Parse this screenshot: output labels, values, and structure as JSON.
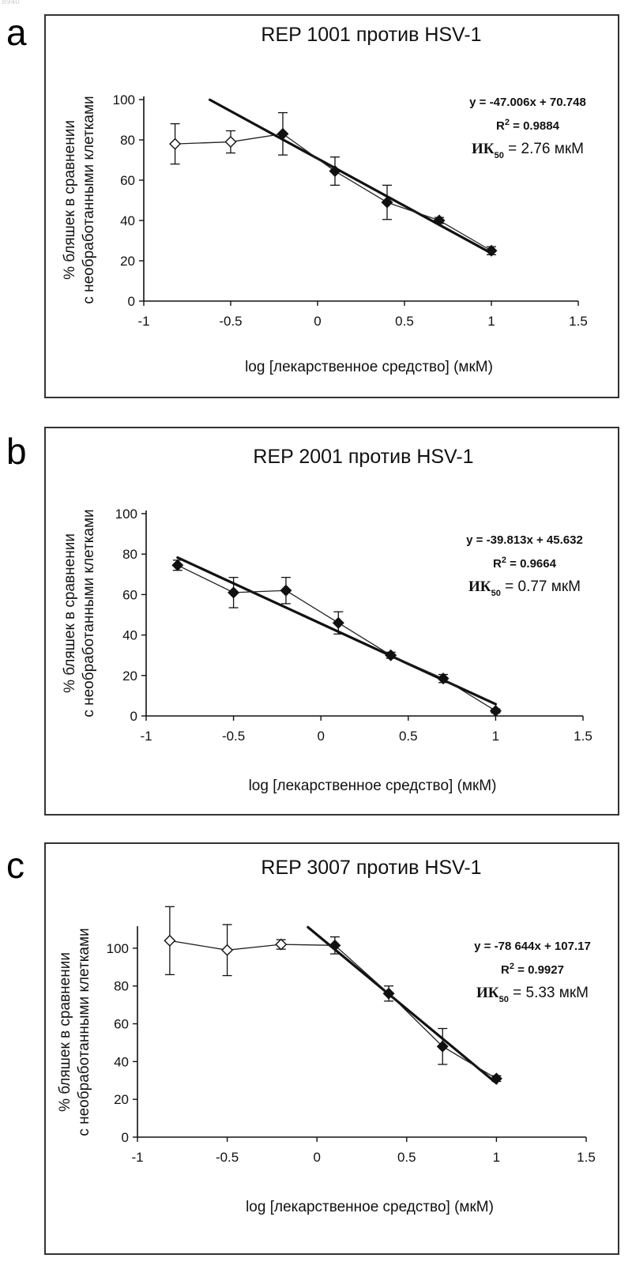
{
  "watermark": "8940",
  "chart_data": [
    {
      "type": "line",
      "panel": "a",
      "title": "REP 1001 против HSV-1",
      "ylabel": "% бляшек в сравнении с необработанными клетками",
      "xlabel": "log [лекарственное средство]  (мкМ)",
      "xlim": [
        -1,
        1.5
      ],
      "ylim": [
        0,
        100
      ],
      "xticks": [
        -1,
        -0.5,
        0,
        0.5,
        1,
        1.5
      ],
      "yticks": [
        0,
        20,
        40,
        60,
        80,
        100
      ],
      "xtick_labels": [
        "-1",
        "-0.5",
        "0",
        "0.5",
        "1",
        "1.5"
      ],
      "ytick_labels": [
        "0",
        "20",
        "40",
        "60",
        "80",
        "100"
      ],
      "series": [
        {
          "points": [
            {
              "x": -0.82,
              "y": 78,
              "err": 10,
              "marker": "open-diamond"
            },
            {
              "x": -0.5,
              "y": 79,
              "err": 5.5,
              "marker": "open-diamond"
            },
            {
              "x": -0.2,
              "y": 83,
              "err": 10.5,
              "marker": "filled-diamond"
            },
            {
              "x": 0.1,
              "y": 64.5,
              "err": 7,
              "marker": "filled-diamond"
            },
            {
              "x": 0.4,
              "y": 49,
              "err": 8.5,
              "marker": "filled-diamond"
            },
            {
              "x": 0.7,
              "y": 40,
              "err": 1.5,
              "marker": "filled-diamond"
            },
            {
              "x": 1.0,
              "y": 25,
              "err": 2,
              "marker": "filled-diamond"
            }
          ]
        }
      ],
      "trendline": {
        "slope": -47.006,
        "intercept": 70.748,
        "x_start": -0.62,
        "x_end": 1.0
      },
      "annotation": {
        "equation": "y = -47.006x + 70.748",
        "r2_prefix": "R",
        "r2_sup": "2",
        "r2_value": " = 0.9884",
        "ic_prefix": "ИК",
        "ic_sub": "50",
        "ic_value": " = 2.76 мкМ"
      }
    },
    {
      "type": "line",
      "panel": "b",
      "title": "REP 2001 против HSV-1",
      "ylabel": "% бляшек в сравнении с необработанными клетками",
      "xlabel": "log [лекарственное средство]  (мкМ)",
      "xlim": [
        -1,
        1.5
      ],
      "ylim": [
        0,
        100
      ],
      "xticks": [
        -1,
        -0.5,
        0,
        0.5,
        1,
        1.5
      ],
      "yticks": [
        0,
        20,
        40,
        60,
        80,
        100
      ],
      "xtick_labels": [
        "-1",
        "-0.5",
        "0",
        "0.5",
        "1",
        "1.5"
      ],
      "ytick_labels": [
        "0",
        "20",
        "40",
        "60",
        "80",
        "100"
      ],
      "series": [
        {
          "points": [
            {
              "x": -0.82,
              "y": 74.5,
              "err": 2.5,
              "marker": "filled-diamond"
            },
            {
              "x": -0.5,
              "y": 61,
              "err": 7.5,
              "marker": "filled-diamond"
            },
            {
              "x": -0.2,
              "y": 62,
              "err": 6.5,
              "marker": "filled-diamond"
            },
            {
              "x": 0.1,
              "y": 46,
              "err": 5.5,
              "marker": "filled-diamond"
            },
            {
              "x": 0.4,
              "y": 30,
              "err": 1.5,
              "marker": "filled-diamond"
            },
            {
              "x": 0.7,
              "y": 18.5,
              "err": 2,
              "marker": "filled-diamond"
            },
            {
              "x": 1.0,
              "y": 2.5,
              "err": 1,
              "marker": "filled-diamond"
            }
          ]
        }
      ],
      "trendline": {
        "slope": -39.813,
        "intercept": 45.632,
        "x_start": -0.82,
        "x_end": 1.0
      },
      "annotation": {
        "equation": "y = -39.813x + 45.632",
        "r2_prefix": "R",
        "r2_sup": "2",
        "r2_value": " = 0.9664",
        "ic_prefix": "ИК",
        "ic_sub": "50",
        "ic_value": " = 0.77 мкМ"
      }
    },
    {
      "type": "line",
      "panel": "c",
      "title": "REP 3007 против HSV-1",
      "ylabel": "% бляшек в сравнении с необработанными клетками",
      "xlabel": "log [лекарственное средство]  (мкМ)",
      "xlim": [
        -1,
        1.5
      ],
      "ylim": [
        0,
        110
      ],
      "xticks": [
        -1,
        -0.5,
        0,
        0.5,
        1,
        1.5
      ],
      "yticks": [
        0,
        20,
        40,
        60,
        80,
        100
      ],
      "xtick_labels": [
        "-1",
        "-0.5",
        "0",
        "0.5",
        "1",
        "1.5"
      ],
      "ytick_labels": [
        "0",
        "20",
        "40",
        "60",
        "80",
        "100"
      ],
      "series": [
        {
          "points": [
            {
              "x": -0.82,
              "y": 104,
              "err": 18,
              "marker": "open-diamond"
            },
            {
              "x": -0.5,
              "y": 99,
              "err": 13.5,
              "marker": "open-diamond"
            },
            {
              "x": -0.2,
              "y": 102,
              "err": 2.5,
              "marker": "open-diamond"
            },
            {
              "x": 0.1,
              "y": 101.5,
              "err": 4.5,
              "marker": "filled-diamond"
            },
            {
              "x": 0.4,
              "y": 76,
              "err": 4,
              "marker": "filled-diamond"
            },
            {
              "x": 0.7,
              "y": 48,
              "err": 9.5,
              "marker": "filled-diamond"
            },
            {
              "x": 1.0,
              "y": 31,
              "err": 1.5,
              "marker": "filled-diamond"
            }
          ]
        }
      ],
      "trendline": {
        "slope": -78.644,
        "intercept": 107.17,
        "x_start": -0.05,
        "x_end": 1.0
      },
      "annotation": {
        "equation": "y = -78 644x + 107.17",
        "r2_prefix": "R",
        "r2_sup": "2",
        "r2_value": " = 0.9927",
        "ic_prefix": "ИК",
        "ic_sub": "50",
        "ic_value": " = 5.33 мкМ"
      }
    }
  ]
}
